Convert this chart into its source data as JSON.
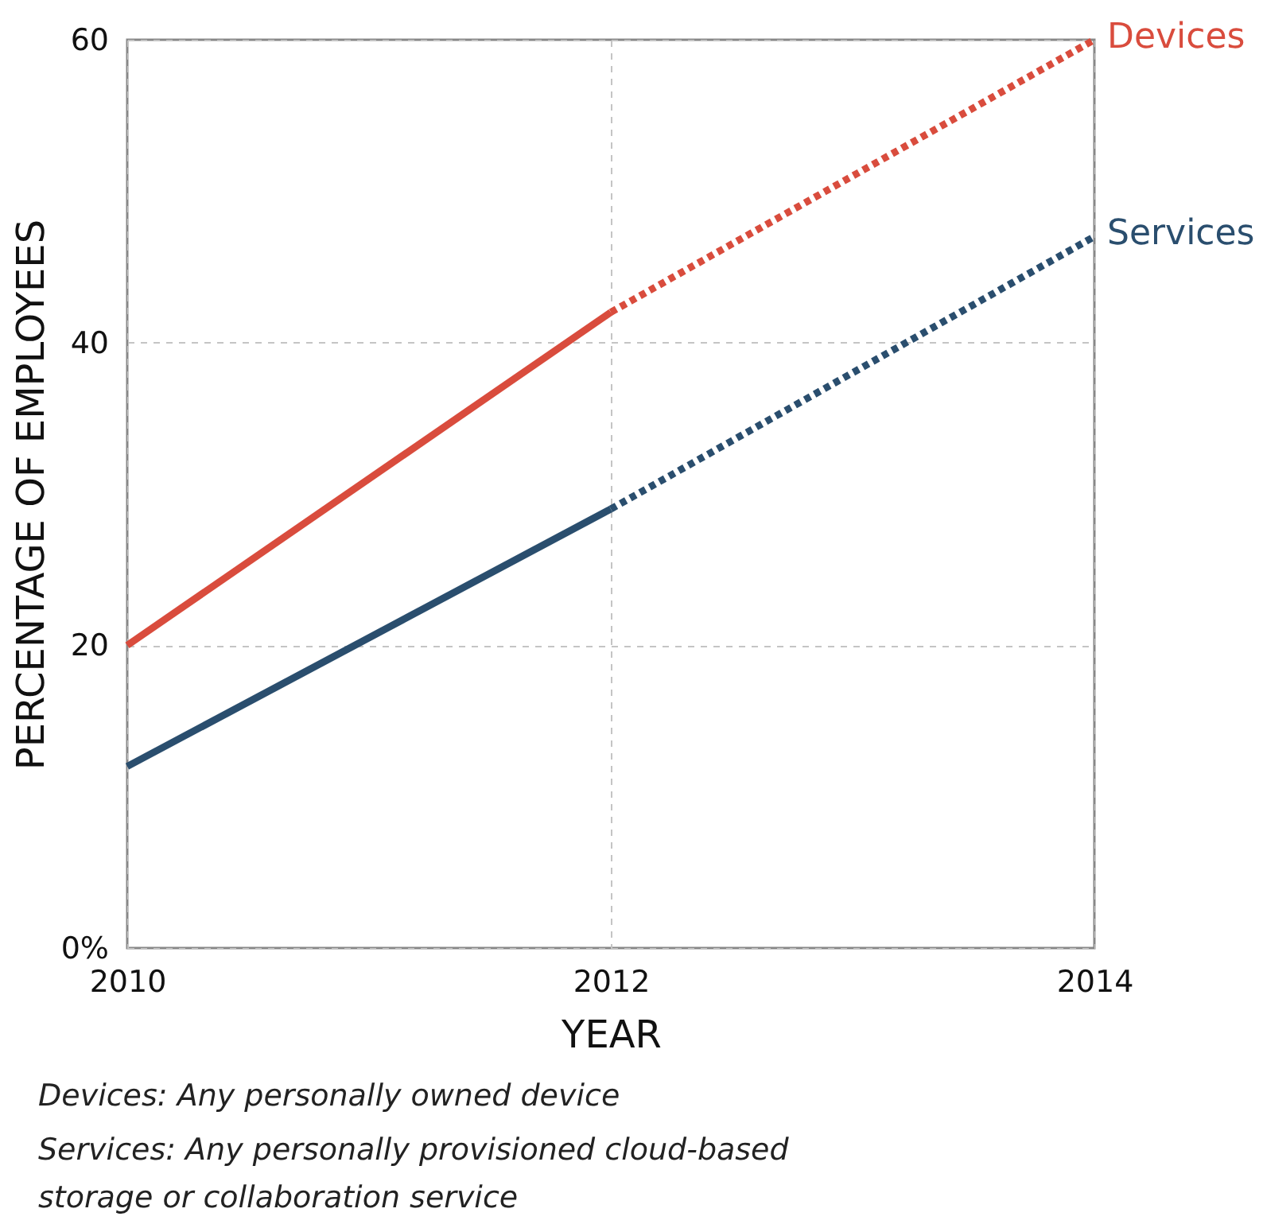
{
  "chart_data": {
    "type": "line",
    "xlabel": "YEAR",
    "ylabel": "PERCENTAGE OF EMPLOYEES",
    "x": [
      2010,
      2012,
      2014
    ],
    "xlim": [
      2010,
      2014
    ],
    "xticks": [
      2010,
      2012,
      2014
    ],
    "ylim": [
      0,
      60
    ],
    "yticks": [
      {
        "value": 0,
        "label": "0%"
      },
      20,
      40,
      60
    ],
    "grid": true,
    "series": [
      {
        "color": "#d94c3d",
        "values": [
          20,
          42,
          null
        ],
        "line_style": "solid"
      },
      {
        "name": "Devices",
        "color": "#d94c3d",
        "values": [
          null,
          42,
          60
        ],
        "line_style": "dotted"
      },
      {
        "color": "#2a4e6e",
        "values": [
          12,
          29,
          null
        ],
        "line_style": "solid"
      },
      {
        "name": "Services",
        "color": "#2a4e6e",
        "values": [
          null,
          29,
          47
        ],
        "line_style": "dotted"
      }
    ],
    "annotations": [
      "Devices: Any personally owned device",
      "Services: Any personally provisioned cloud-based storage or collaboration service"
    ]
  }
}
